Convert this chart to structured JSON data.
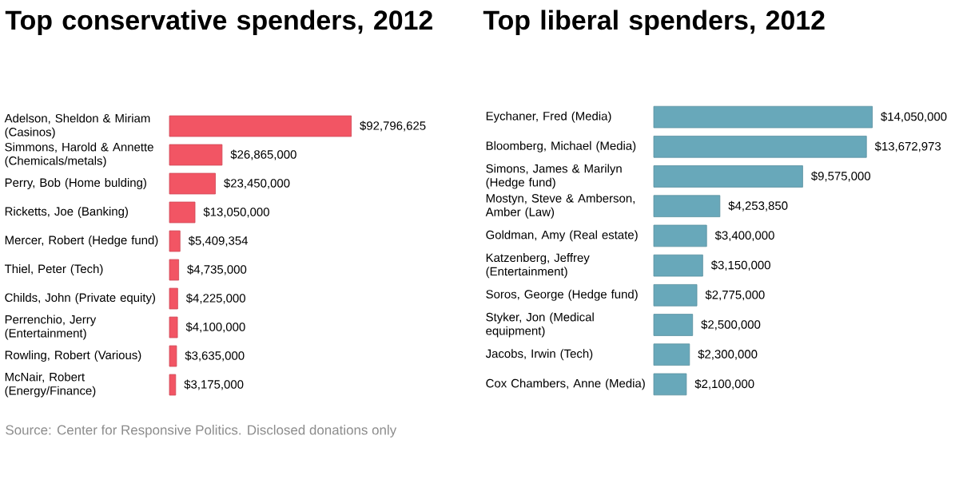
{
  "chart_data": [
    {
      "type": "bar",
      "orientation": "horizontal",
      "title": "Top conservative spenders, 2012",
      "color": "#f25564",
      "categories": [
        "Adelson, Sheldon & Miriam (Casinos)",
        "Simmons, Harold & Annette (Chemicals/metals)",
        "Perry, Bob (Home bulding)",
        "Ricketts, Joe (Banking)",
        "Mercer, Robert (Hedge fund)",
        "Thiel, Peter (Tech)",
        "Childs, John (Private equity)",
        "Perrenchio, Jerry (Entertainment)",
        "Rowling, Robert (Various)",
        "McNair, Robert (Energy/Finance)"
      ],
      "values": [
        92796625,
        26865000,
        23450000,
        13050000,
        5409354,
        4735000,
        4225000,
        4100000,
        3635000,
        3175000
      ],
      "value_labels": [
        "$92,796,625",
        "$26,865,000",
        "$23,450,000",
        "$13,050,000",
        "$5,409,354",
        "$4,735,000",
        "$4,225,000",
        "$4,100,000",
        "$3,635,000",
        "$3,175,000"
      ],
      "annotations": [
        "Source: Center for Responsive Politics. Disclosed donations only"
      ]
    },
    {
      "type": "bar",
      "orientation": "horizontal",
      "title": "Top liberal spenders, 2012",
      "color": "#68a8ba",
      "categories": [
        "Eychaner, Fred (Media)",
        "Bloomberg, Michael (Media)",
        "Simons, James & Marilyn (Hedge fund)",
        "Mostyn, Steve & Amberson, Amber (Law)",
        "Goldman, Amy (Real estate)",
        "Katzenberg, Jeffrey (Entertainment)",
        "Soros, George (Hedge fund)",
        "Styker, Jon (Medical equipment)",
        "Jacobs, Irwin (Tech)",
        "Cox Chambers, Anne (Media)"
      ],
      "values": [
        14050000,
        13672973,
        9575000,
        4253850,
        3400000,
        3150000,
        2775000,
        2500000,
        2300000,
        2100000
      ],
      "value_labels": [
        "$14,050,000",
        "$13,672,973",
        "$9,575,000",
        "$4,253,850",
        "$3,400,000",
        "$3,150,000",
        "$2,775,000",
        "$2,500,000",
        "$2,300,000",
        "$2,100,000"
      ]
    }
  ]
}
